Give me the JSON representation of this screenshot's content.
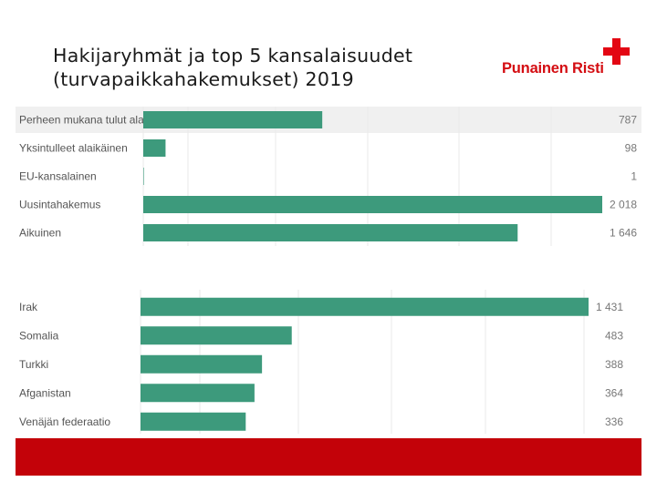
{
  "header": {
    "title_line1": "Hakijaryhmät ja top 5 kansalaisuudet",
    "title_line2": "(turvapaikkahakemukset) 2019"
  },
  "logo": {
    "text": "Punainen Risti",
    "cross_color": "#e30613",
    "text_color": "#d40d12"
  },
  "colors": {
    "bar": "#3d9a7c",
    "highlight_row": "#f0f0f0",
    "footer": "#c30209"
  },
  "chart_data": [
    {
      "type": "bar",
      "orientation": "horizontal",
      "categories": [
        "Perheen mukana tulut ala...",
        "Yksintulleet alaikäinen",
        "EU-kansalainen",
        "Uusintahakemus",
        "Aikuinen"
      ],
      "values": [
        787,
        98,
        1,
        2018,
        1646
      ],
      "value_labels": [
        "787",
        "98",
        "1",
        "2 018",
        "1 646"
      ],
      "xlim": [
        0,
        2018
      ]
    },
    {
      "type": "bar",
      "orientation": "horizontal",
      "categories": [
        "Irak",
        "Somalia",
        "Turkki",
        "Afganistan",
        "Venäjän federaatio"
      ],
      "values": [
        1431,
        483,
        388,
        364,
        336
      ],
      "value_labels": [
        "1 431",
        "483",
        "388",
        "364",
        "336"
      ],
      "xlim": [
        0,
        1431
      ]
    }
  ]
}
